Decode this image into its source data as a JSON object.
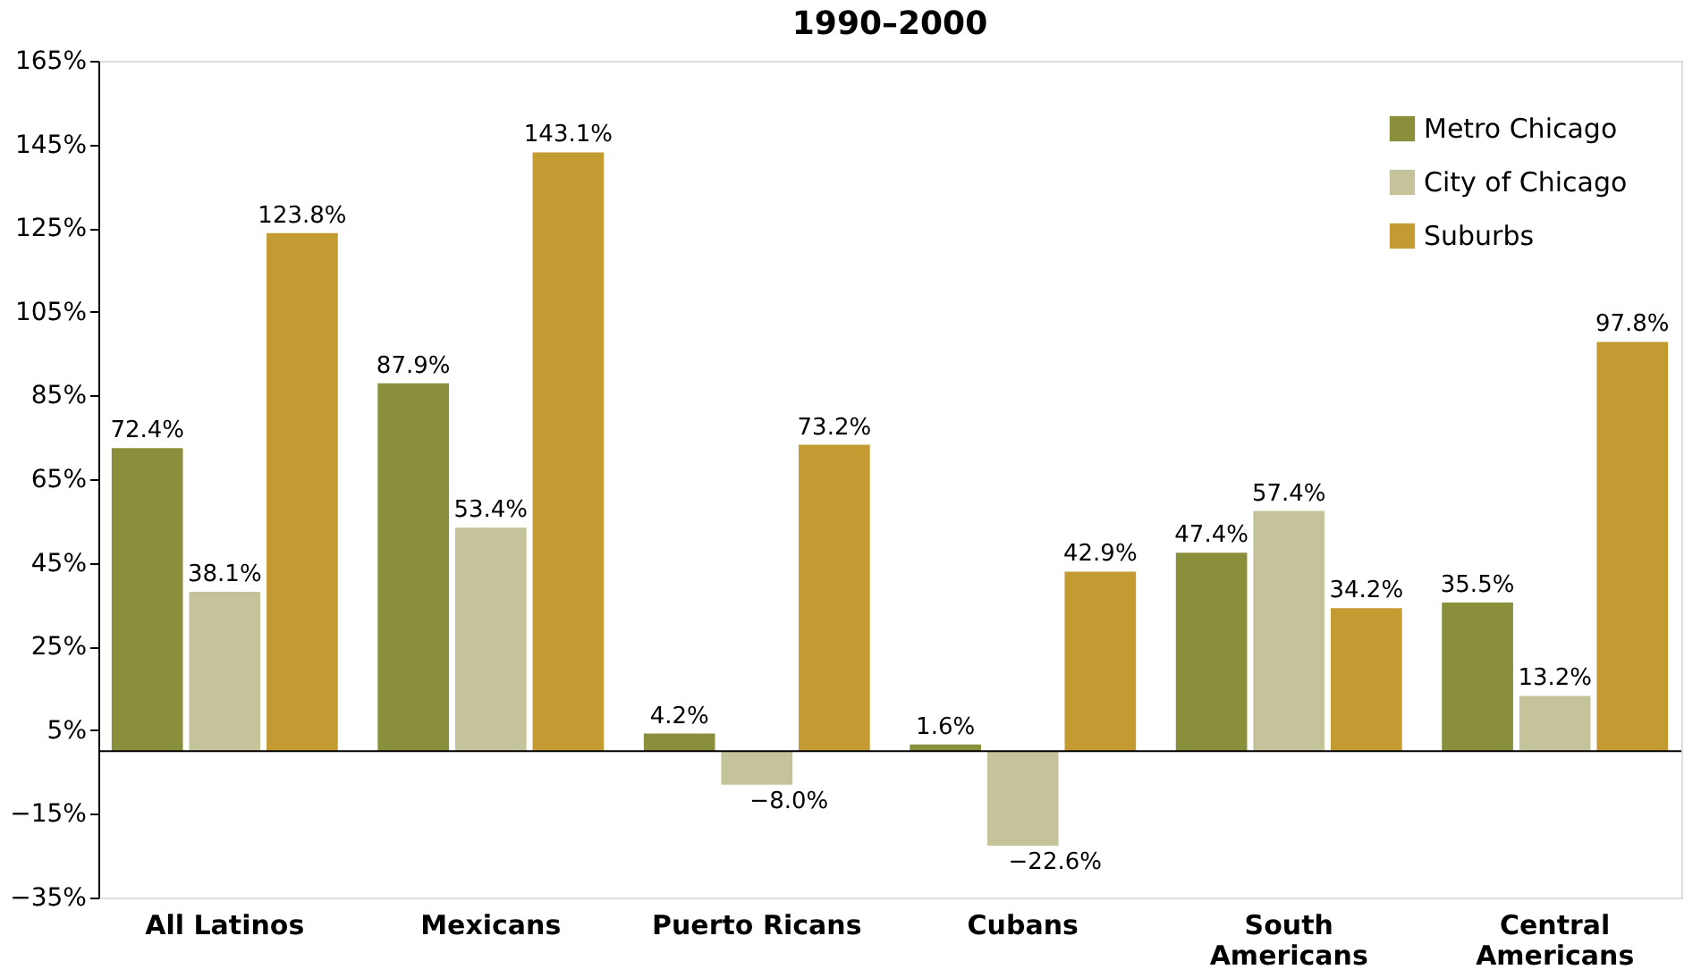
{
  "chart_data": {
    "type": "bar",
    "title": "1990–2000",
    "categories": [
      "All Latinos",
      "Mexicans",
      "Puerto Ricans",
      "Cubans",
      "South\nAmericans",
      "Central\nAmericans"
    ],
    "series": [
      {
        "name": "Metro Chicago",
        "color": "#8a8f3b",
        "values": [
          72.4,
          87.9,
          4.2,
          1.6,
          47.4,
          35.5
        ],
        "value_labels": [
          "72.4%",
          "87.9%",
          "4.2%",
          "1.6%",
          "47.4%",
          "35.5%"
        ]
      },
      {
        "name": "City of Chicago",
        "color": "#c4c39a",
        "values": [
          38.1,
          53.4,
          -8.0,
          -22.6,
          57.4,
          13.2
        ],
        "value_labels": [
          "38.1%",
          "53.4%",
          "−8.0%",
          "−22.6%",
          "57.4%",
          "13.2%"
        ]
      },
      {
        "name": "Suburbs",
        "color": "#c49a33",
        "values": [
          123.8,
          143.1,
          73.2,
          42.9,
          34.2,
          97.8
        ],
        "value_labels": [
          "123.8%",
          "143.1%",
          "73.2%",
          "42.9%",
          "34.2%",
          "97.8%"
        ]
      }
    ],
    "ylim": [
      -35,
      165
    ],
    "yticks": [
      {
        "value": -35,
        "label": "−35%"
      },
      {
        "value": -15,
        "label": "−15%"
      },
      {
        "value": 5,
        "label": "5%"
      },
      {
        "value": 25,
        "label": "25%"
      },
      {
        "value": 45,
        "label": "45%"
      },
      {
        "value": 65,
        "label": "65%"
      },
      {
        "value": 85,
        "label": "85%"
      },
      {
        "value": 105,
        "label": "105%"
      },
      {
        "value": 125,
        "label": "125%"
      },
      {
        "value": 145,
        "label": "145%"
      },
      {
        "value": 165,
        "label": "165%"
      }
    ],
    "grid": false,
    "legend": "top right"
  }
}
